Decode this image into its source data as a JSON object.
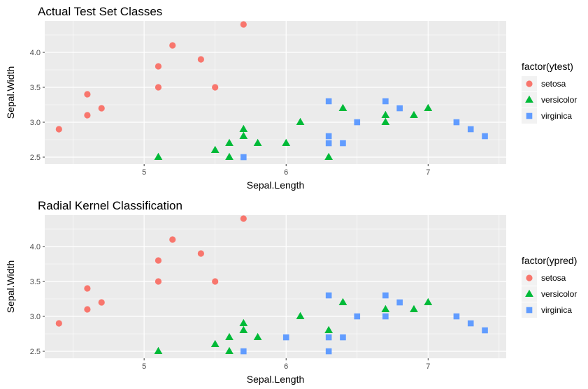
{
  "colors": {
    "setosa": "#F8766D",
    "versicolor": "#00BA38",
    "virginica": "#619CFF",
    "panel": "#EBEBEB",
    "grid": "#FFFFFF"
  },
  "chart_data": [
    {
      "type": "scatter",
      "title": "Actual Test Set Classes",
      "xlabel": "Sepal.Length",
      "ylabel": "Sepal.Width",
      "xlim": [
        4.3,
        7.55
      ],
      "ylim": [
        2.4,
        4.45
      ],
      "xticks": [
        5,
        6,
        7
      ],
      "yticks": [
        2.5,
        3.0,
        3.5,
        4.0
      ],
      "ytick_labels": [
        "2.5",
        "3.0",
        "3.5",
        "4.0"
      ],
      "legend": {
        "title": "factor(ytest)",
        "position": "right",
        "labels": [
          "setosa",
          "versicolor",
          "virginica"
        ]
      },
      "series": [
        {
          "name": "setosa",
          "shape": "circle",
          "points": [
            [
              4.4,
              2.9
            ],
            [
              4.6,
              3.4
            ],
            [
              4.6,
              3.1
            ],
            [
              4.7,
              3.2
            ],
            [
              5.1,
              3.8
            ],
            [
              5.1,
              3.5
            ],
            [
              5.2,
              4.1
            ],
            [
              5.4,
              3.9
            ],
            [
              5.5,
              3.5
            ],
            [
              5.7,
              4.4
            ]
          ]
        },
        {
          "name": "versicolor",
          "shape": "triangle",
          "points": [
            [
              5.1,
              2.5
            ],
            [
              5.5,
              2.6
            ],
            [
              5.6,
              2.7
            ],
            [
              5.6,
              2.5
            ],
            [
              5.7,
              2.8
            ],
            [
              5.7,
              2.9
            ],
            [
              5.8,
              2.7
            ],
            [
              6.0,
              2.7
            ],
            [
              6.1,
              3.0
            ],
            [
              6.3,
              2.5
            ],
            [
              6.4,
              3.2
            ],
            [
              6.7,
              3.1
            ],
            [
              6.7,
              3.0
            ],
            [
              6.9,
              3.1
            ],
            [
              7.0,
              3.2
            ]
          ]
        },
        {
          "name": "virginica",
          "shape": "square",
          "points": [
            [
              5.7,
              2.5
            ],
            [
              6.3,
              3.3
            ],
            [
              6.3,
              2.8
            ],
            [
              6.3,
              2.7
            ],
            [
              6.4,
              2.7
            ],
            [
              6.5,
              3.0
            ],
            [
              6.7,
              3.3
            ],
            [
              6.8,
              3.2
            ],
            [
              7.2,
              3.0
            ],
            [
              7.3,
              2.9
            ],
            [
              7.4,
              2.8
            ]
          ]
        }
      ]
    },
    {
      "type": "scatter",
      "title": "Radial Kernel Classification",
      "xlabel": "Sepal.Length",
      "ylabel": "Sepal.Width",
      "xlim": [
        4.3,
        7.55
      ],
      "ylim": [
        2.4,
        4.45
      ],
      "xticks": [
        5,
        6,
        7
      ],
      "yticks": [
        2.5,
        3.0,
        3.5,
        4.0
      ],
      "ytick_labels": [
        "2.5",
        "3.0",
        "3.5",
        "4.0"
      ],
      "legend": {
        "title": "factor(ypred)",
        "position": "right",
        "labels": [
          "setosa",
          "versicolor",
          "virginica"
        ]
      },
      "series": [
        {
          "name": "setosa",
          "shape": "circle",
          "points": [
            [
              4.4,
              2.9
            ],
            [
              4.6,
              3.4
            ],
            [
              4.6,
              3.1
            ],
            [
              4.7,
              3.2
            ],
            [
              5.1,
              3.8
            ],
            [
              5.1,
              3.5
            ],
            [
              5.2,
              4.1
            ],
            [
              5.4,
              3.9
            ],
            [
              5.5,
              3.5
            ],
            [
              5.7,
              4.4
            ]
          ]
        },
        {
          "name": "versicolor",
          "shape": "triangle",
          "points": [
            [
              5.1,
              2.5
            ],
            [
              5.5,
              2.6
            ],
            [
              5.6,
              2.7
            ],
            [
              5.6,
              2.5
            ],
            [
              5.7,
              2.8
            ],
            [
              5.7,
              2.9
            ],
            [
              5.8,
              2.7
            ],
            [
              6.1,
              3.0
            ],
            [
              6.3,
              2.8
            ],
            [
              6.4,
              3.2
            ],
            [
              6.7,
              3.1
            ],
            [
              6.9,
              3.1
            ],
            [
              7.0,
              3.2
            ]
          ]
        },
        {
          "name": "virginica",
          "shape": "square",
          "points": [
            [
              5.7,
              2.5
            ],
            [
              6.0,
              2.7
            ],
            [
              6.3,
              3.3
            ],
            [
              6.3,
              2.7
            ],
            [
              6.3,
              2.5
            ],
            [
              6.4,
              2.7
            ],
            [
              6.5,
              3.0
            ],
            [
              6.7,
              3.3
            ],
            [
              6.7,
              3.0
            ],
            [
              6.8,
              3.2
            ],
            [
              7.2,
              3.0
            ],
            [
              7.3,
              2.9
            ],
            [
              7.4,
              2.8
            ]
          ]
        }
      ]
    }
  ]
}
